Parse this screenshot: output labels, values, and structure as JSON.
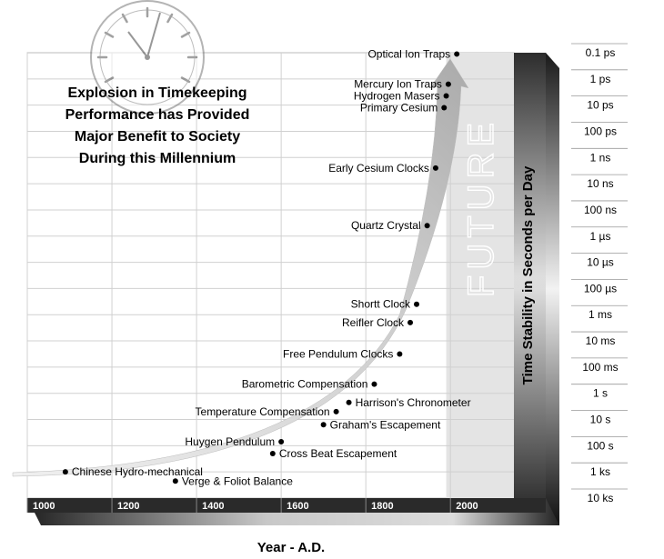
{
  "chart_data": {
    "type": "scatter",
    "title_lines": [
      "Explosion in Timekeeping",
      "Performance has Provided",
      "Major Benefit to Society",
      "During this Millennium"
    ],
    "xlabel": "Year - A.D.",
    "ylabel": "Time Stability in Seconds per Day",
    "x_tick_labels": [
      "1000",
      "1200",
      "1400",
      "1600",
      "1800",
      "2000"
    ],
    "xlim": [
      1000,
      2150
    ],
    "y_tick_labels": [
      "0.1 ps",
      "1 ps",
      "10 ps",
      "100 ps",
      "1 ns",
      "10 ns",
      "100 ns",
      "1 µs",
      "10 µs",
      "100 µs",
      "1 ms",
      "10 ms",
      "100 ms",
      "1 s",
      "10 s",
      "100 s",
      "1 ks",
      "10 ks"
    ],
    "y_log10_range": [
      -13,
      4
    ],
    "future_label": "FUTURE",
    "future_start_year": 1990,
    "grid": true,
    "series": [
      {
        "points": [
          {
            "label": "Chinese Hydro-mechanical",
            "year": 1090,
            "log10_seconds": 3.0
          },
          {
            "label": "Verge & Foliot Balance",
            "year": 1350,
            "log10_seconds": 3.35
          },
          {
            "label": "Cross Beat Escapement",
            "year": 1580,
            "log10_seconds": 2.3
          },
          {
            "label": "Huygen Pendulum",
            "year": 1600,
            "log10_seconds": 1.85
          },
          {
            "label": "Graham's Escapement",
            "year": 1700,
            "log10_seconds": 1.2
          },
          {
            "label": "Temperature Compensation",
            "year": 1730,
            "log10_seconds": 0.7
          },
          {
            "label": "Harrison's Chronometer",
            "year": 1760,
            "log10_seconds": 0.35
          },
          {
            "label": "Barometric Compensation",
            "year": 1820,
            "log10_seconds": -0.35
          },
          {
            "label": "Free Pendulum Clocks",
            "year": 1880,
            "log10_seconds": -1.5
          },
          {
            "label": "Reifler Clock",
            "year": 1905,
            "log10_seconds": -2.7
          },
          {
            "label": "Shortt Clock",
            "year": 1920,
            "log10_seconds": -3.4
          },
          {
            "label": "Quartz Crystal",
            "year": 1945,
            "log10_seconds": -6.4
          },
          {
            "label": "Early Cesium Clocks",
            "year": 1965,
            "log10_seconds": -8.6
          },
          {
            "label": "Primary Cesium",
            "year": 1985,
            "log10_seconds": -10.9
          },
          {
            "label": "Hydrogen Masers",
            "year": 1990,
            "log10_seconds": -11.35
          },
          {
            "label": "Mercury Ion Traps",
            "year": 1995,
            "log10_seconds": -11.8
          },
          {
            "label": "Optical Ion Traps",
            "year": 2015,
            "log10_seconds": -12.95
          }
        ]
      }
    ]
  }
}
